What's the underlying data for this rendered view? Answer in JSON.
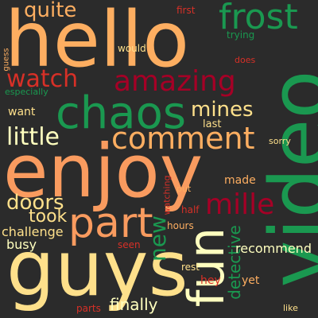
{
  "colors": {
    "background": "#2b2b2b",
    "orange": "#fdae61",
    "salmon": "#f99b5f",
    "red": "#a50026",
    "crimson": "#d73027",
    "green": "#1a9850",
    "dark_green": "#006837",
    "cream": "#fee08b",
    "pale": "#ffffbf"
  },
  "words": [
    {
      "text": "hello"
    },
    {
      "text": "enjoy"
    },
    {
      "text": "guys"
    },
    {
      "text": "video"
    },
    {
      "text": "chaos"
    },
    {
      "text": "frost"
    },
    {
      "text": "amazing"
    },
    {
      "text": "watch"
    },
    {
      "text": "part"
    },
    {
      "text": "comment"
    },
    {
      "text": "mille"
    },
    {
      "text": "fun"
    },
    {
      "text": "quite"
    },
    {
      "text": "mines"
    },
    {
      "text": "little"
    },
    {
      "text": "doors"
    },
    {
      "text": "took"
    },
    {
      "text": "new"
    },
    {
      "text": "challenge"
    },
    {
      "text": "busy"
    },
    {
      "text": "detective"
    },
    {
      "text": "recommend"
    },
    {
      "text": "finally"
    },
    {
      "text": "especially"
    },
    {
      "text": "want"
    },
    {
      "text": "trying"
    },
    {
      "text": "first"
    },
    {
      "text": "would"
    },
    {
      "text": "guess"
    },
    {
      "text": "does"
    },
    {
      "text": "last"
    },
    {
      "text": "sorry"
    },
    {
      "text": "made"
    },
    {
      "text": "watching"
    },
    {
      "text": "put"
    },
    {
      "text": "half"
    },
    {
      "text": "hours"
    },
    {
      "text": "seen"
    },
    {
      "text": "rest"
    },
    {
      "text": "hey"
    },
    {
      "text": "yet"
    },
    {
      "text": "parts"
    },
    {
      "text": "like"
    }
  ]
}
